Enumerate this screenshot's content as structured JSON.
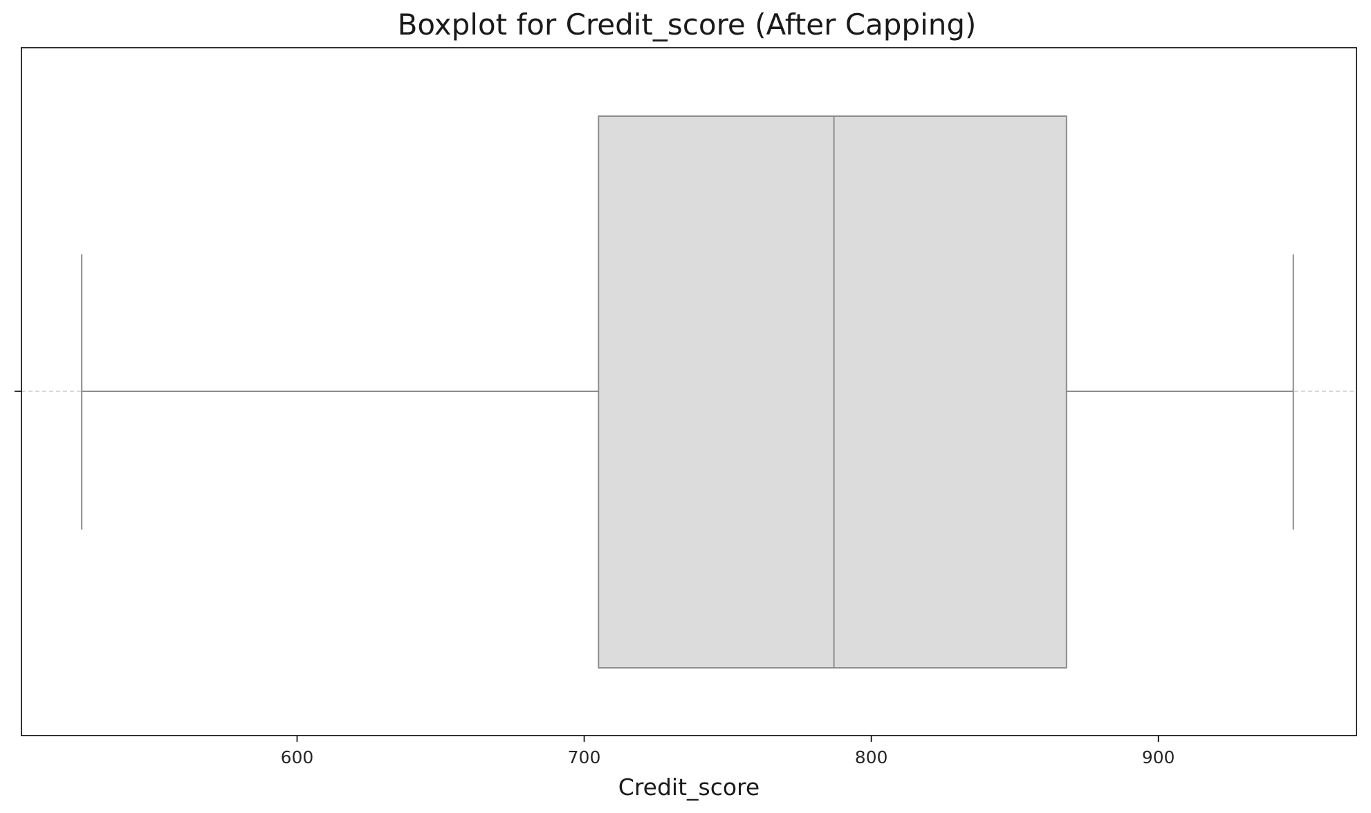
{
  "chart_data": {
    "type": "boxplot",
    "title": "Boxplot for Credit_score (After Capping)",
    "xlabel": "Credit_score",
    "ylabel": "",
    "xlim": [
      504,
      969
    ],
    "xticks": [
      600,
      700,
      800,
      900
    ],
    "x_tick_labels": [
      "600",
      "700",
      "800",
      "900"
    ],
    "box": {
      "whisker_low": 525,
      "q1": 705,
      "median": 787,
      "q3": 868,
      "whisker_high": 947
    },
    "grid": false,
    "legend": "none",
    "colors": {
      "box_fill": "#dcdcdc",
      "box_edge": "#8c8c8c",
      "frame": "#000000",
      "dashed_guide": "#cccccc"
    }
  }
}
